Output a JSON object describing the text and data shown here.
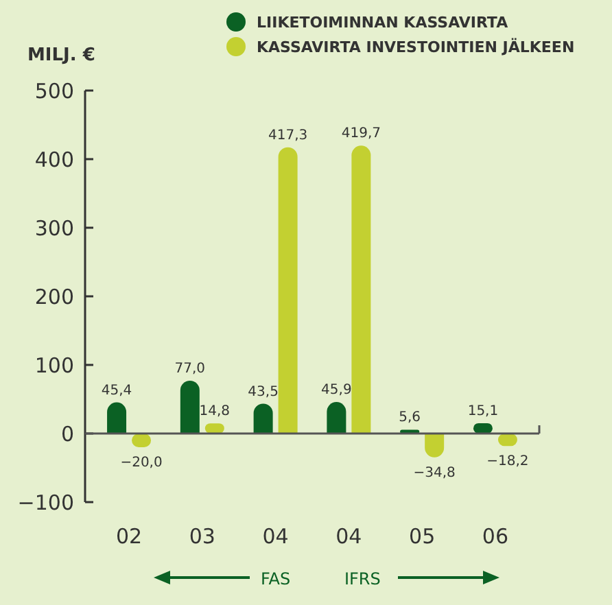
{
  "chart_data": {
    "type": "bar",
    "ylabel": "MILJ. €",
    "categories": [
      "02",
      "03",
      "04",
      "04",
      "05",
      "06"
    ],
    "series": [
      {
        "name": "LIIKETOIMINNAN KASSAVIRTA",
        "color": "#0b6124",
        "values": [
          45.4,
          77.0,
          43.5,
          45.9,
          5.6,
          15.1
        ],
        "value_labels": [
          "45,4",
          "77,0",
          "43,5",
          "45,9",
          "5,6",
          "15,1"
        ]
      },
      {
        "name": "KASSAVIRTA INVESTOINTIEN JÄLKEEN",
        "color": "#c3d031",
        "values": [
          -20.0,
          14.8,
          417.3,
          419.7,
          -34.8,
          -18.2
        ],
        "value_labels": [
          "−20,0",
          "14,8",
          "417,3",
          "419,7",
          "−34,8",
          "−18,2"
        ]
      }
    ],
    "ylim": [
      -100,
      500
    ],
    "yticks": [
      {
        "value": -100,
        "label": "−100"
      },
      0,
      100,
      200,
      300,
      400,
      500
    ],
    "legend": "top right",
    "annotations": [
      "FAS",
      "IFRS"
    ]
  }
}
